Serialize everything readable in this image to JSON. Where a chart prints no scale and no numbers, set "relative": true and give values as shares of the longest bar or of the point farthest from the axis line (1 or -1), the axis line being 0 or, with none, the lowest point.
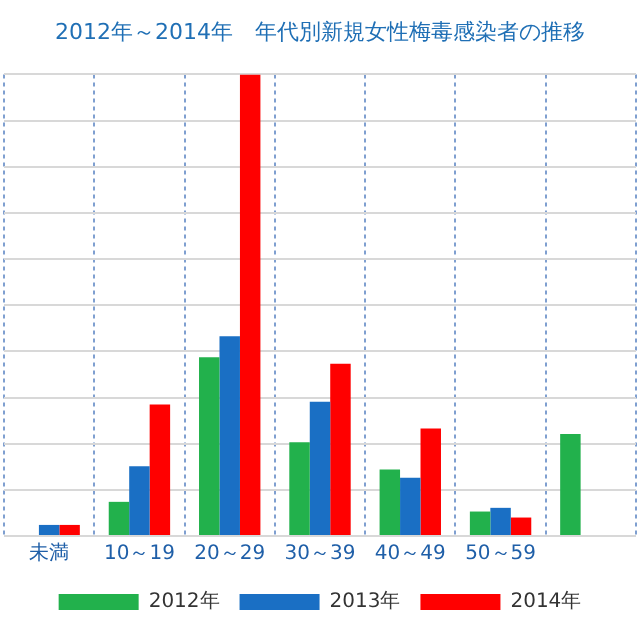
{
  "chart_data": {
    "type": "bar",
    "title": "2012年～2014年　年代別新規女性梅毒感染者の推移",
    "relative": true,
    "categories": [
      "未満",
      "10～19",
      "20～29",
      "30～39",
      "40～49",
      "50～59",
      null
    ],
    "series": [
      {
        "name": "2012年",
        "color": "#22b14c",
        "values": [
          null,
          0.074,
          0.387,
          0.203,
          0.144,
          0.053,
          0.221
        ]
      },
      {
        "name": "2013年",
        "color": "#1a6fc4",
        "values": [
          0.024,
          0.151,
          0.433,
          0.291,
          0.126,
          0.061,
          null
        ]
      },
      {
        "name": "2014年",
        "color": "#ff0000",
        "values": [
          0.024,
          0.285,
          1,
          0.373,
          0.233,
          0.04,
          null
        ]
      }
    ],
    "grid": true,
    "legend": "bottom"
  }
}
